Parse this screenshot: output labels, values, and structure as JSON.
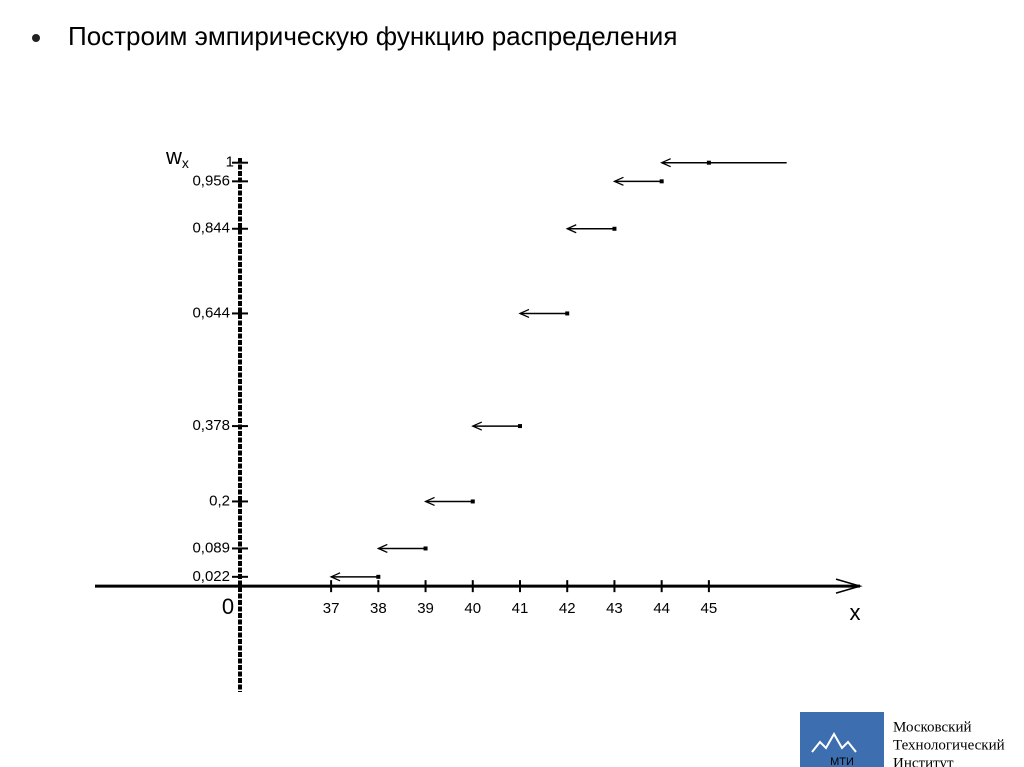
{
  "heading": "Построим эмпирическую функцию распределения",
  "chart_data": {
    "type": "step",
    "y_label": "w",
    "y_label_subscript": "x",
    "x_label": "x",
    "origin_label": "0",
    "x": [
      37,
      38,
      39,
      40,
      41,
      42,
      43,
      44
    ],
    "values": [
      0.022,
      0.089,
      0.2,
      0.378,
      0.644,
      0.844,
      0.956,
      1
    ],
    "color": "#000000",
    "xlim": [
      32,
      48.2
    ],
    "ylim": [
      -0.25,
      1.03
    ],
    "xticks": [
      37,
      38,
      39,
      40,
      41,
      42,
      43,
      44,
      45
    ],
    "yticks": [
      {
        "value": 0.022,
        "label": "0,022"
      },
      {
        "value": 0.089,
        "label": "0,089"
      },
      {
        "value": 0.2,
        "label": "0,2"
      },
      {
        "value": 0.378,
        "label": "0,378"
      },
      {
        "value": 0.644,
        "label": "0,644"
      },
      {
        "value": 0.844,
        "label": "0,844"
      },
      {
        "value": 0.956,
        "label": "0,956"
      },
      1
    ]
  },
  "logo": {
    "abbr": "МТИ",
    "name_lines": [
      "Московский",
      "Технологический",
      "Институт"
    ]
  }
}
